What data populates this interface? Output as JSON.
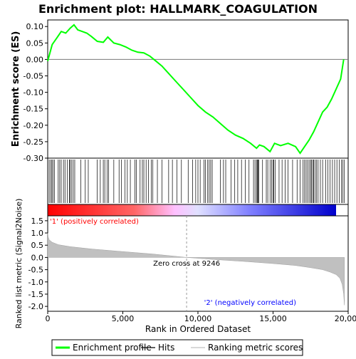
{
  "chart_data": {
    "type": "line",
    "title": "Enrichment plot: HALLMARK_COAGULATION",
    "es_panel": {
      "ylabel": "Enrichment score (ES)",
      "ylim": [
        -0.3,
        0.12
      ],
      "yticks": [
        "0.10",
        "0.05",
        "0.00",
        "-0.05",
        "-0.10",
        "-0.15",
        "-0.20",
        "-0.25",
        "-0.30"
      ],
      "ytick_values": [
        0.1,
        0.05,
        0.0,
        -0.05,
        -0.1,
        -0.15,
        -0.2,
        -0.25,
        -0.3
      ],
      "xlim": [
        0,
        20000
      ],
      "series": [
        {
          "name": "Enrichment profile",
          "color": "#00ff00",
          "x": [
            0,
            300,
            600,
            900,
            1200,
            1500,
            1750,
            2000,
            2300,
            2600,
            2900,
            3300,
            3700,
            4000,
            4400,
            4800,
            5200,
            5600,
            6000,
            6400,
            6800,
            7200,
            7600,
            8000,
            8500,
            9000,
            9500,
            10000,
            10500,
            11000,
            11500,
            12000,
            12500,
            13000,
            13500,
            13900,
            14100,
            14400,
            14800,
            15100,
            15500,
            16000,
            16500,
            16800,
            17100,
            17400,
            17700,
            18000,
            18300,
            18600,
            18900,
            19200,
            19500,
            19700
          ],
          "y": [
            -0.005,
            0.045,
            0.065,
            0.085,
            0.08,
            0.095,
            0.105,
            0.09,
            0.085,
            0.08,
            0.07,
            0.055,
            0.052,
            0.068,
            0.05,
            0.045,
            0.038,
            0.028,
            0.022,
            0.02,
            0.01,
            -0.005,
            -0.02,
            -0.04,
            -0.065,
            -0.09,
            -0.115,
            -0.14,
            -0.16,
            -0.175,
            -0.195,
            -0.215,
            -0.23,
            -0.24,
            -0.255,
            -0.27,
            -0.26,
            -0.265,
            -0.28,
            -0.255,
            -0.262,
            -0.255,
            -0.265,
            -0.285,
            -0.265,
            -0.245,
            -0.22,
            -0.19,
            -0.16,
            -0.145,
            -0.12,
            -0.09,
            -0.06,
            0.0
          ]
        }
      ]
    },
    "hits_panel": {
      "hit_ranks": [
        100,
        200,
        280,
        350,
        450,
        700,
        800,
        900,
        1050,
        1150,
        1300,
        1450,
        1500,
        1600,
        1700,
        1800,
        2200,
        2500,
        2700,
        3300,
        3500,
        3700,
        3800,
        3950,
        4050,
        4400,
        4750,
        4900,
        5150,
        5300,
        5500,
        5800,
        5900,
        6150,
        6300,
        6400,
        6550,
        6700,
        6900,
        7000,
        7300,
        7600,
        8050,
        8300,
        8600,
        8900,
        9350,
        9650,
        9850,
        10000,
        10150,
        10400,
        10500,
        10650,
        10750,
        10850,
        10950,
        11500,
        11700,
        11850,
        12200,
        12450,
        12650,
        12900,
        13150,
        13400,
        13700,
        13800,
        13900,
        13950,
        14000,
        14050,
        14300,
        14550,
        14650,
        14800,
        14900,
        15000,
        15050,
        15150,
        15400,
        15600,
        15800,
        16000,
        16300,
        16600,
        16800,
        17000,
        17100,
        17200,
        17300,
        17400,
        17500,
        17550,
        17650,
        17700,
        17800,
        17900,
        18000,
        18150,
        18300,
        18500,
        18650,
        18800,
        18950,
        19100,
        19250,
        19400,
        19550,
        19650,
        19750
      ]
    },
    "ranked_metric_panel": {
      "ylabel": "Ranked list metric (Signal2Noise)",
      "xlabel": "Rank in Ordered Dataset",
      "ylim": [
        -2.2,
        1.7
      ],
      "yticks": [
        "1.5",
        "1.0",
        "0.5",
        "0.0",
        "-0.5",
        "-1.0",
        "-1.5",
        "-2.0"
      ],
      "ytick_values": [
        1.5,
        1.0,
        0.5,
        0.0,
        -0.5,
        -1.0,
        -1.5,
        -2.0
      ],
      "xlim": [
        0,
        20000
      ],
      "xticks": [
        "0",
        "5,000",
        "10,000",
        "15,000",
        "20,000"
      ],
      "xtick_values": [
        0,
        5000,
        10000,
        15000,
        20000
      ],
      "x": [
        0,
        30,
        100,
        300,
        700,
        1500,
        3000,
        5000,
        7000,
        9246,
        11000,
        13000,
        15000,
        16500,
        17500,
        18300,
        18800,
        19200,
        19450,
        19600,
        19700,
        19750
      ],
      "y": [
        1.0,
        0.85,
        0.72,
        0.62,
        0.52,
        0.44,
        0.34,
        0.24,
        0.14,
        0.0,
        -0.08,
        -0.16,
        -0.25,
        -0.33,
        -0.42,
        -0.5,
        -0.6,
        -0.7,
        -0.85,
        -1.1,
        -1.5,
        -1.95
      ],
      "zero_cross_label": "Zero cross at 9246",
      "zero_cross_rank": 9246,
      "positive_label": "'1' (positively correlated)",
      "negative_label": "'2' (negatively correlated)"
    },
    "legend": {
      "placement": "bottom",
      "entries": [
        {
          "name": "Enrichment profile",
          "color": "#00ff00"
        },
        {
          "name": "Hits",
          "color": "#000000"
        },
        {
          "name": "Ranking metric scores",
          "color": "#c0c0c0"
        }
      ]
    },
    "colors": {
      "positive": "#ff0000",
      "negative": "#0000ff",
      "neutral": "#ffc0ff",
      "metric_fill": "#c0c0c0",
      "pos_label": "#ff0000",
      "neg_label": "#0000ff"
    }
  }
}
